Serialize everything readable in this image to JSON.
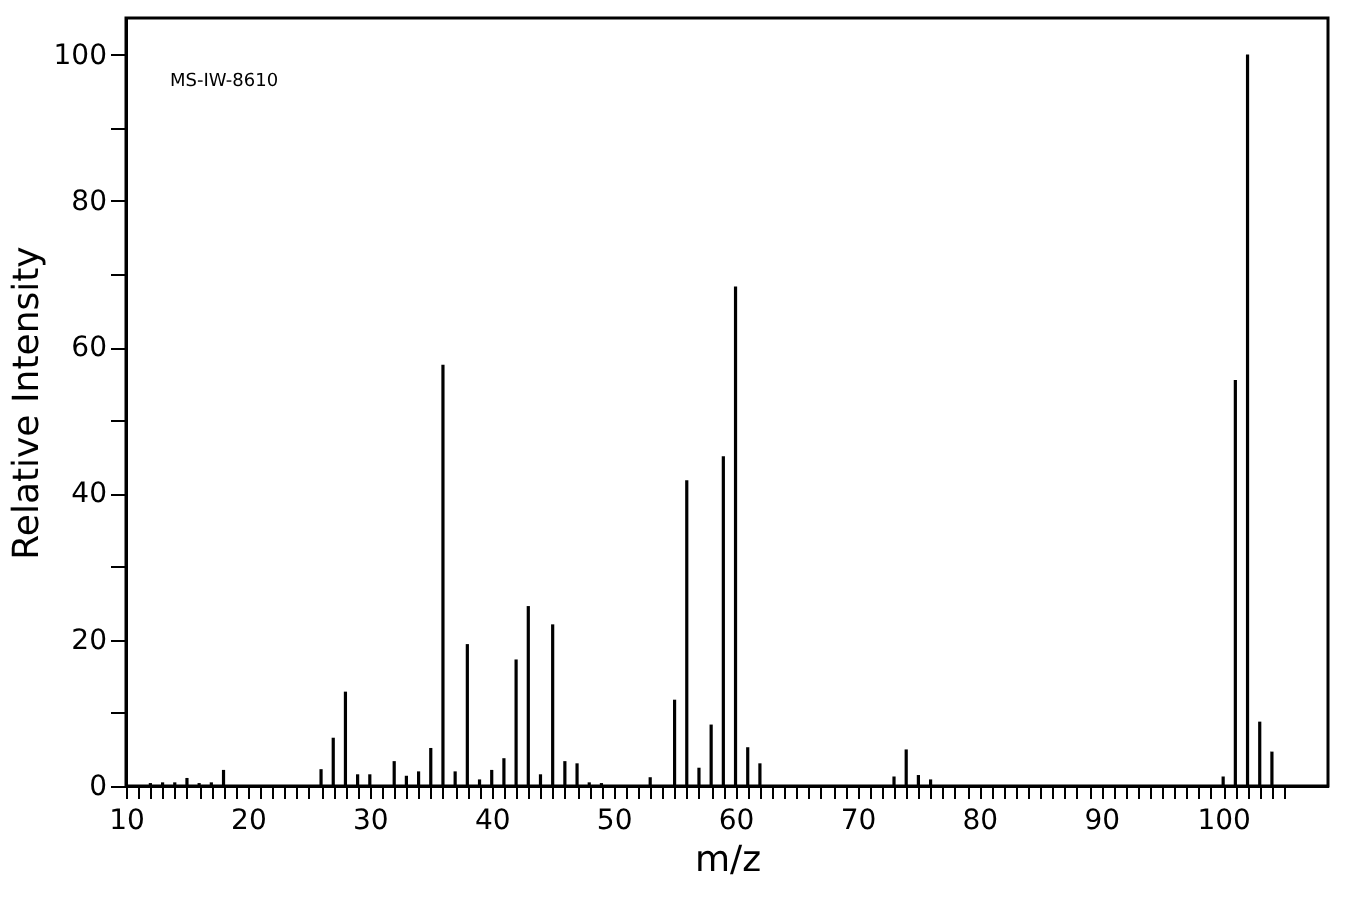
{
  "chart_data": {
    "type": "bar",
    "xlabel": "m/z",
    "ylabel": "Relative Intensity",
    "annotations": [
      "MS-IW-8610"
    ],
    "x": [
      12,
      13,
      14,
      15,
      16,
      17,
      18,
      26,
      27,
      28,
      29,
      30,
      32,
      33,
      34,
      35,
      36,
      37,
      38,
      39,
      40,
      41,
      42,
      43,
      44,
      45,
      46,
      47,
      48,
      49,
      53,
      55,
      56,
      57,
      58,
      59,
      60,
      61,
      62,
      73,
      74,
      75,
      76,
      100,
      101,
      102,
      103,
      104
    ],
    "series": [
      {
        "color": "#000000",
        "values": [
          0.4,
          0.5,
          0.5,
          1.1,
          0.4,
          0.5,
          2.2,
          2.3,
          6.6,
          12.9,
          1.6,
          1.6,
          3.4,
          1.4,
          2.0,
          5.2,
          57.6,
          2.0,
          19.4,
          0.9,
          2.2,
          3.8,
          17.3,
          24.6,
          1.6,
          22.1,
          3.4,
          3.1,
          0.5,
          0.4,
          1.2,
          11.8,
          41.8,
          2.5,
          8.4,
          45.1,
          68.3,
          5.3,
          3.1,
          1.3,
          5.0,
          1.5,
          0.9,
          1.3,
          55.5,
          100,
          8.8,
          4.7
        ]
      }
    ],
    "xlim": [
      10,
      108.6
    ],
    "ylim": [
      0,
      105
    ],
    "xticks": [
      10,
      {
        "value": 11,
        "label": null
      },
      {
        "value": 12,
        "label": null
      },
      {
        "value": 13,
        "label": null
      },
      {
        "value": 14,
        "label": null
      },
      {
        "value": 15,
        "label": null
      },
      {
        "value": 16,
        "label": null
      },
      {
        "value": 17,
        "label": null
      },
      {
        "value": 18,
        "label": null
      },
      {
        "value": 19,
        "label": null
      },
      20,
      {
        "value": 21,
        "label": null
      },
      {
        "value": 22,
        "label": null
      },
      {
        "value": 23,
        "label": null
      },
      {
        "value": 24,
        "label": null
      },
      {
        "value": 25,
        "label": null
      },
      {
        "value": 26,
        "label": null
      },
      {
        "value": 27,
        "label": null
      },
      {
        "value": 28,
        "label": null
      },
      {
        "value": 29,
        "label": null
      },
      30,
      {
        "value": 31,
        "label": null
      },
      {
        "value": 32,
        "label": null
      },
      {
        "value": 33,
        "label": null
      },
      {
        "value": 34,
        "label": null
      },
      {
        "value": 35,
        "label": null
      },
      {
        "value": 36,
        "label": null
      },
      {
        "value": 37,
        "label": null
      },
      {
        "value": 38,
        "label": null
      },
      {
        "value": 39,
        "label": null
      },
      40,
      {
        "value": 41,
        "label": null
      },
      {
        "value": 42,
        "label": null
      },
      {
        "value": 43,
        "label": null
      },
      {
        "value": 44,
        "label": null
      },
      {
        "value": 45,
        "label": null
      },
      {
        "value": 46,
        "label": null
      },
      {
        "value": 47,
        "label": null
      },
      {
        "value": 48,
        "label": null
      },
      {
        "value": 49,
        "label": null
      },
      50,
      {
        "value": 51,
        "label": null
      },
      {
        "value": 52,
        "label": null
      },
      {
        "value": 53,
        "label": null
      },
      {
        "value": 54,
        "label": null
      },
      {
        "value": 55,
        "label": null
      },
      {
        "value": 56,
        "label": null
      },
      {
        "value": 57,
        "label": null
      },
      {
        "value": 58,
        "label": null
      },
      {
        "value": 59,
        "label": null
      },
      60,
      {
        "value": 61,
        "label": null
      },
      {
        "value": 62,
        "label": null
      },
      {
        "value": 63,
        "label": null
      },
      {
        "value": 64,
        "label": null
      },
      {
        "value": 65,
        "label": null
      },
      {
        "value": 66,
        "label": null
      },
      {
        "value": 67,
        "label": null
      },
      {
        "value": 68,
        "label": null
      },
      {
        "value": 69,
        "label": null
      },
      70,
      {
        "value": 71,
        "label": null
      },
      {
        "value": 72,
        "label": null
      },
      {
        "value": 73,
        "label": null
      },
      {
        "value": 74,
        "label": null
      },
      {
        "value": 75,
        "label": null
      },
      {
        "value": 76,
        "label": null
      },
      {
        "value": 77,
        "label": null
      },
      {
        "value": 78,
        "label": null
      },
      {
        "value": 79,
        "label": null
      },
      80,
      {
        "value": 81,
        "label": null
      },
      {
        "value": 82,
        "label": null
      },
      {
        "value": 83,
        "label": null
      },
      {
        "value": 84,
        "label": null
      },
      {
        "value": 85,
        "label": null
      },
      {
        "value": 86,
        "label": null
      },
      {
        "value": 87,
        "label": null
      },
      {
        "value": 88,
        "label": null
      },
      {
        "value": 89,
        "label": null
      },
      90,
      {
        "value": 91,
        "label": null
      },
      {
        "value": 92,
        "label": null
      },
      {
        "value": 93,
        "label": null
      },
      {
        "value": 94,
        "label": null
      },
      {
        "value": 95,
        "label": null
      },
      {
        "value": 96,
        "label": null
      },
      {
        "value": 97,
        "label": null
      },
      {
        "value": 98,
        "label": null
      },
      {
        "value": 99,
        "label": null
      },
      100,
      {
        "value": 101,
        "label": null
      },
      {
        "value": 102,
        "label": null
      },
      {
        "value": 103,
        "label": null
      },
      {
        "value": 104,
        "label": null
      },
      {
        "value": 105,
        "label": null
      }
    ],
    "yticks": [
      0,
      {
        "value": 10,
        "label": null
      },
      20,
      {
        "value": 30,
        "label": null
      },
      40,
      {
        "value": 50,
        "label": null
      },
      60,
      {
        "value": 70,
        "label": null
      },
      80,
      {
        "value": 90,
        "label": null
      },
      100
    ],
    "grid": false
  }
}
